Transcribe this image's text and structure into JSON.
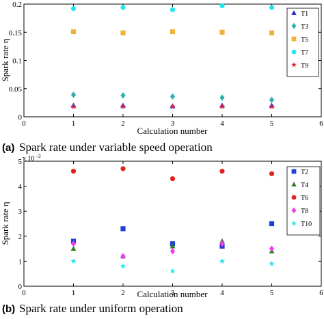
{
  "chart_data": [
    {
      "type": "scatter",
      "panel": "(a)",
      "title": "Spark rate under variable speed operation",
      "xlabel": "Calculation number",
      "ylabel": "Spark rate η",
      "xlim": [
        0,
        6
      ],
      "ylim": [
        0,
        0.2
      ],
      "x_ticks": [
        "0",
        "1",
        "2",
        "3",
        "4",
        "5",
        "6"
      ],
      "y_ticks": [
        "0",
        "0.05",
        "0.1",
        "0.15",
        "0.2"
      ],
      "legend_position": "top-right",
      "x": [
        1,
        2,
        3,
        4,
        5
      ],
      "series": [
        {
          "name": "T1",
          "marker": "triangle",
          "color": "#1f1fd6",
          "values": [
            0.02,
            0.02,
            0.019,
            0.02,
            0.02
          ]
        },
        {
          "name": "T3",
          "marker": "diamond",
          "color": "#2ab0b0",
          "values": [
            0.039,
            0.038,
            0.036,
            0.034,
            0.03
          ]
        },
        {
          "name": "T5",
          "marker": "square",
          "color": "#f0b33a",
          "values": [
            0.151,
            0.149,
            0.151,
            0.15,
            0.149
          ]
        },
        {
          "name": "T7",
          "marker": "circle",
          "color": "#22e5f2",
          "values": [
            0.192,
            0.194,
            0.19,
            0.197,
            0.194
          ]
        },
        {
          "name": "T9",
          "marker": "star",
          "color": "#e0243a",
          "values": [
            0.018,
            0.018,
            0.018,
            0.018,
            0.018
          ]
        }
      ]
    },
    {
      "type": "scatter",
      "panel": "(b)",
      "title": "Spark rate under uniform operation",
      "xlabel": "Calculation number",
      "ylabel": "Spark rate η",
      "scale_label": "x 10",
      "scale_exponent": "-3",
      "xlim": [
        0,
        6
      ],
      "ylim": [
        0,
        5
      ],
      "x_ticks": [
        "0",
        "1",
        "2",
        "3",
        "4",
        "5",
        "6"
      ],
      "y_ticks": [
        "0",
        "1",
        "2",
        "3",
        "4",
        "5"
      ],
      "legend_position": "top-right",
      "x": [
        1,
        2,
        3,
        4,
        5
      ],
      "series": [
        {
          "name": "T2",
          "marker": "square",
          "color": "#1f3fd6",
          "values": [
            1.8,
            2.3,
            1.7,
            1.6,
            2.5
          ]
        },
        {
          "name": "T4",
          "marker": "triangle",
          "color": "#2f7d1f",
          "values": [
            1.5,
            1.2,
            1.6,
            1.8,
            1.4
          ]
        },
        {
          "name": "T6",
          "marker": "circle",
          "color": "#e0201a",
          "values": [
            4.6,
            4.7,
            4.3,
            4.6,
            4.5
          ]
        },
        {
          "name": "T8",
          "marker": "diamond",
          "color": "#f03cf0",
          "values": [
            1.7,
            1.2,
            1.4,
            1.7,
            1.5
          ]
        },
        {
          "name": "T10",
          "marker": "star",
          "color": "#22e5f2",
          "values": [
            1.0,
            0.8,
            0.6,
            1.0,
            0.9
          ]
        }
      ]
    }
  ]
}
